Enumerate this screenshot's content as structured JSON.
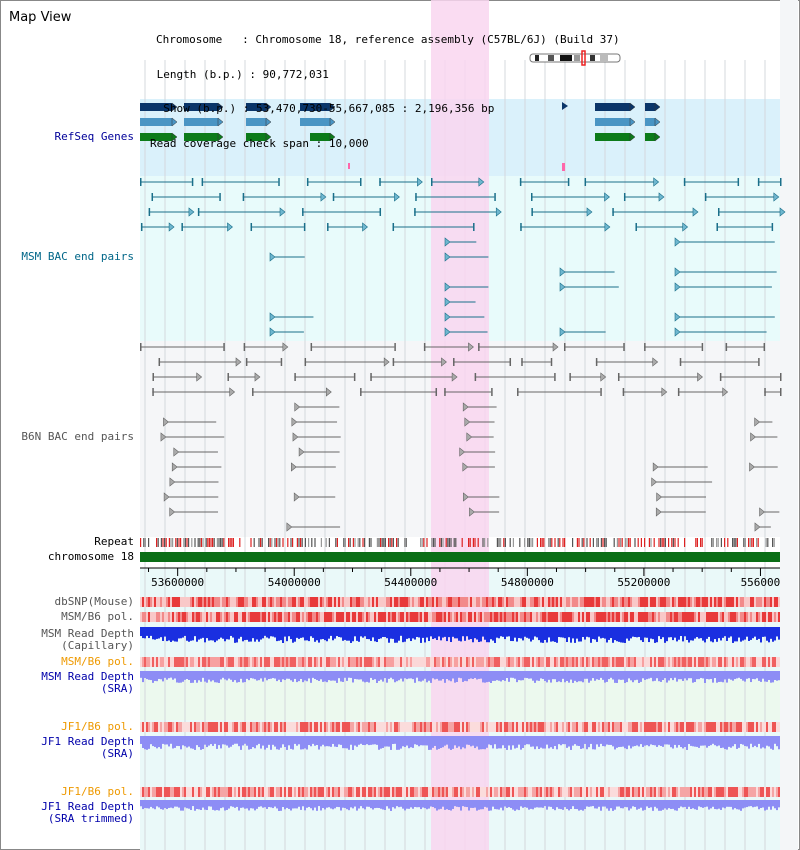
{
  "title": "Map View",
  "info": [
    {
      "label": "Chromosome  ",
      "value": "Chromosome 18, reference assembly (C57BL/6J) (Build 37)"
    },
    {
      "label": " Length (b.p.)",
      "value": "90,772,031"
    },
    {
      "label": "  Show (b.p.)",
      "value": "53,470,730-55,667,085 : 2,196,356 bp"
    },
    {
      "label": "Read coverage check span",
      "value": "10,000"
    }
  ],
  "tracks": {
    "refseq": {
      "label": "RefSeq Genes",
      "color": "#000099"
    },
    "msm_bac": {
      "label": "MSM BAC end pairs",
      "color": "#006688"
    },
    "b6n_bac": {
      "label": "B6N BAC end pairs",
      "color": "#555555"
    },
    "repeat": {
      "label": "Repeat",
      "color": "#000000"
    },
    "chromosome": {
      "label": "chromosome 18",
      "color": "#000000"
    },
    "dbsnp": {
      "label": "dbSNP(Mouse)",
      "color": "#555555"
    },
    "msm_b6_pol_1": {
      "label": "MSM/B6 pol.",
      "color": "#555555"
    },
    "msm_read_depth_cap": {
      "label": "MSM Read Depth",
      "sub": "(Capillary)",
      "color": "#555555"
    },
    "msm_b6_pol_2": {
      "label": "MSM/B6 pol.",
      "color": "#ee9900"
    },
    "msm_read_depth_sra": {
      "label": "MSM Read Depth",
      "sub": "(SRA)",
      "color": "#0000aa"
    },
    "jf1_b6_pol_1": {
      "label": "JF1/B6 pol.",
      "color": "#ee9900"
    },
    "jf1_read_depth_sra": {
      "label": "JF1 Read Depth",
      "sub": "(SRA)",
      "color": "#0000aa"
    },
    "jf1_b6_pol_2": {
      "label": "JF1/B6 pol.",
      "color": "#ee9900"
    },
    "jf1_read_depth_trim": {
      "label": "JF1 Read Depth",
      "sub": "(SRA trimmed)",
      "color": "#0000aa"
    }
  },
  "axis": {
    "start": 53470730,
    "end": 55667085,
    "ticks": [
      "53600000",
      "54000000",
      "54400000",
      "54800000",
      "55200000",
      "556000"
    ]
  },
  "highlight": {
    "start": 54470000,
    "end": 54670000
  },
  "colors": {
    "refseq_band": "#daf1fb",
    "msm_band": "#e8fbfb",
    "b6n_band": "#f5f6f8",
    "highlight": "#f9d6f0",
    "gene_navy": "#0a3569",
    "gene_blue": "#4a95c4",
    "gene_green": "#0c7b1a",
    "msm_line": "#1a6f8a",
    "b6n_line": "#666666",
    "chrom_bar": "#0a6e16",
    "snp_red": "#e33d3d",
    "depth_blue": "#1a2fe0",
    "depth_light": "#8d8df5",
    "grid": "#d4d8dc"
  }
}
